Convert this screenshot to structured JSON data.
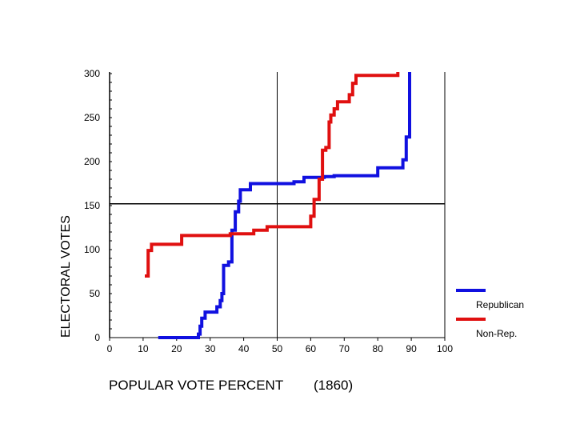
{
  "chart_data": {
    "type": "line",
    "title": "",
    "xlabel": "POPULAR VOTE PERCENT",
    "xlabel_note": "(1860)",
    "ylabel": "ELECTORAL VOTES",
    "xlim": [
      0,
      100
    ],
    "ylim": [
      0,
      300
    ],
    "x_ticks": [
      "0",
      "10",
      "20",
      "30",
      "40",
      "50",
      "60",
      "70",
      "80",
      "90",
      "100"
    ],
    "y_ticks": [
      "0",
      "50",
      "100",
      "150",
      "200",
      "250",
      "300"
    ],
    "reference_lines": {
      "vertical_x": 50,
      "horizontal_y": 152
    },
    "legend_position": "bottom-right",
    "series": [
      {
        "name": "Republican",
        "color": "#1010e0",
        "step": true,
        "points": [
          [
            14.5,
            0
          ],
          [
            26.5,
            0
          ],
          [
            26.5,
            4
          ],
          [
            27,
            4
          ],
          [
            27,
            13
          ],
          [
            27.5,
            13
          ],
          [
            27.5,
            22
          ],
          [
            28.5,
            22
          ],
          [
            28.5,
            29
          ],
          [
            32,
            29
          ],
          [
            32,
            35
          ],
          [
            33,
            35
          ],
          [
            33,
            42
          ],
          [
            33.5,
            42
          ],
          [
            33.5,
            50
          ],
          [
            34,
            50
          ],
          [
            34,
            82
          ],
          [
            35.5,
            82
          ],
          [
            35.5,
            86
          ],
          [
            36.5,
            86
          ],
          [
            36.5,
            122
          ],
          [
            37.5,
            122
          ],
          [
            37.5,
            143
          ],
          [
            38.5,
            143
          ],
          [
            38.5,
            155
          ],
          [
            39,
            155
          ],
          [
            39,
            168
          ],
          [
            42,
            168
          ],
          [
            42,
            175
          ],
          [
            55,
            175
          ],
          [
            55,
            177
          ],
          [
            58,
            177
          ],
          [
            58,
            182
          ],
          [
            64,
            182
          ],
          [
            64,
            183
          ],
          [
            67,
            183
          ],
          [
            67,
            184
          ],
          [
            80,
            184
          ],
          [
            80,
            193
          ],
          [
            87.5,
            193
          ],
          [
            87.5,
            202
          ],
          [
            88.5,
            202
          ],
          [
            88.5,
            228
          ],
          [
            89.5,
            228
          ],
          [
            89.5,
            303
          ]
        ]
      },
      {
        "name": "Non-Rep.",
        "color": "#e01010",
        "step": true,
        "points": [
          [
            10.5,
            70
          ],
          [
            11.5,
            70
          ],
          [
            11.5,
            99
          ],
          [
            12.5,
            99
          ],
          [
            12.5,
            106
          ],
          [
            21.5,
            106
          ],
          [
            21.5,
            116
          ],
          [
            36,
            116
          ],
          [
            36,
            118
          ],
          [
            43,
            118
          ],
          [
            43,
            122
          ],
          [
            47,
            122
          ],
          [
            47,
            126
          ],
          [
            60,
            126
          ],
          [
            60,
            138
          ],
          [
            61,
            138
          ],
          [
            61,
            157
          ],
          [
            62.5,
            157
          ],
          [
            62.5,
            180
          ],
          [
            63.5,
            180
          ],
          [
            63.5,
            213
          ],
          [
            64.5,
            213
          ],
          [
            64.5,
            216
          ],
          [
            65.5,
            216
          ],
          [
            65.5,
            245
          ],
          [
            66,
            245
          ],
          [
            66,
            253
          ],
          [
            67,
            253
          ],
          [
            67,
            260
          ],
          [
            68,
            260
          ],
          [
            68,
            268
          ],
          [
            71.5,
            268
          ],
          [
            71.5,
            276
          ],
          [
            72.5,
            276
          ],
          [
            72.5,
            289
          ],
          [
            73.5,
            289
          ],
          [
            73.5,
            298
          ],
          [
            86,
            298
          ],
          [
            86,
            303
          ]
        ]
      }
    ]
  }
}
